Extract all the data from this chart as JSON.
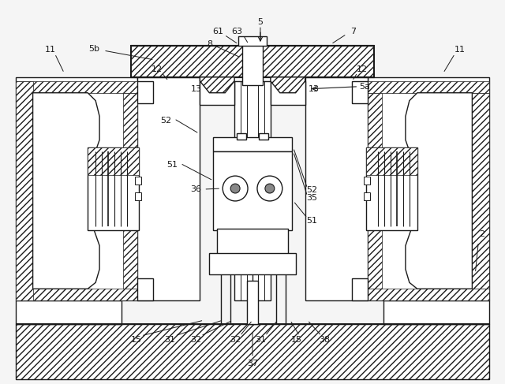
{
  "bg_color": "#f5f5f5",
  "line_color": "#1a1a1a",
  "fig_width": 6.4,
  "fig_height": 4.87,
  "lw": 1.0,
  "lw2": 1.5,
  "fs": 7.5
}
